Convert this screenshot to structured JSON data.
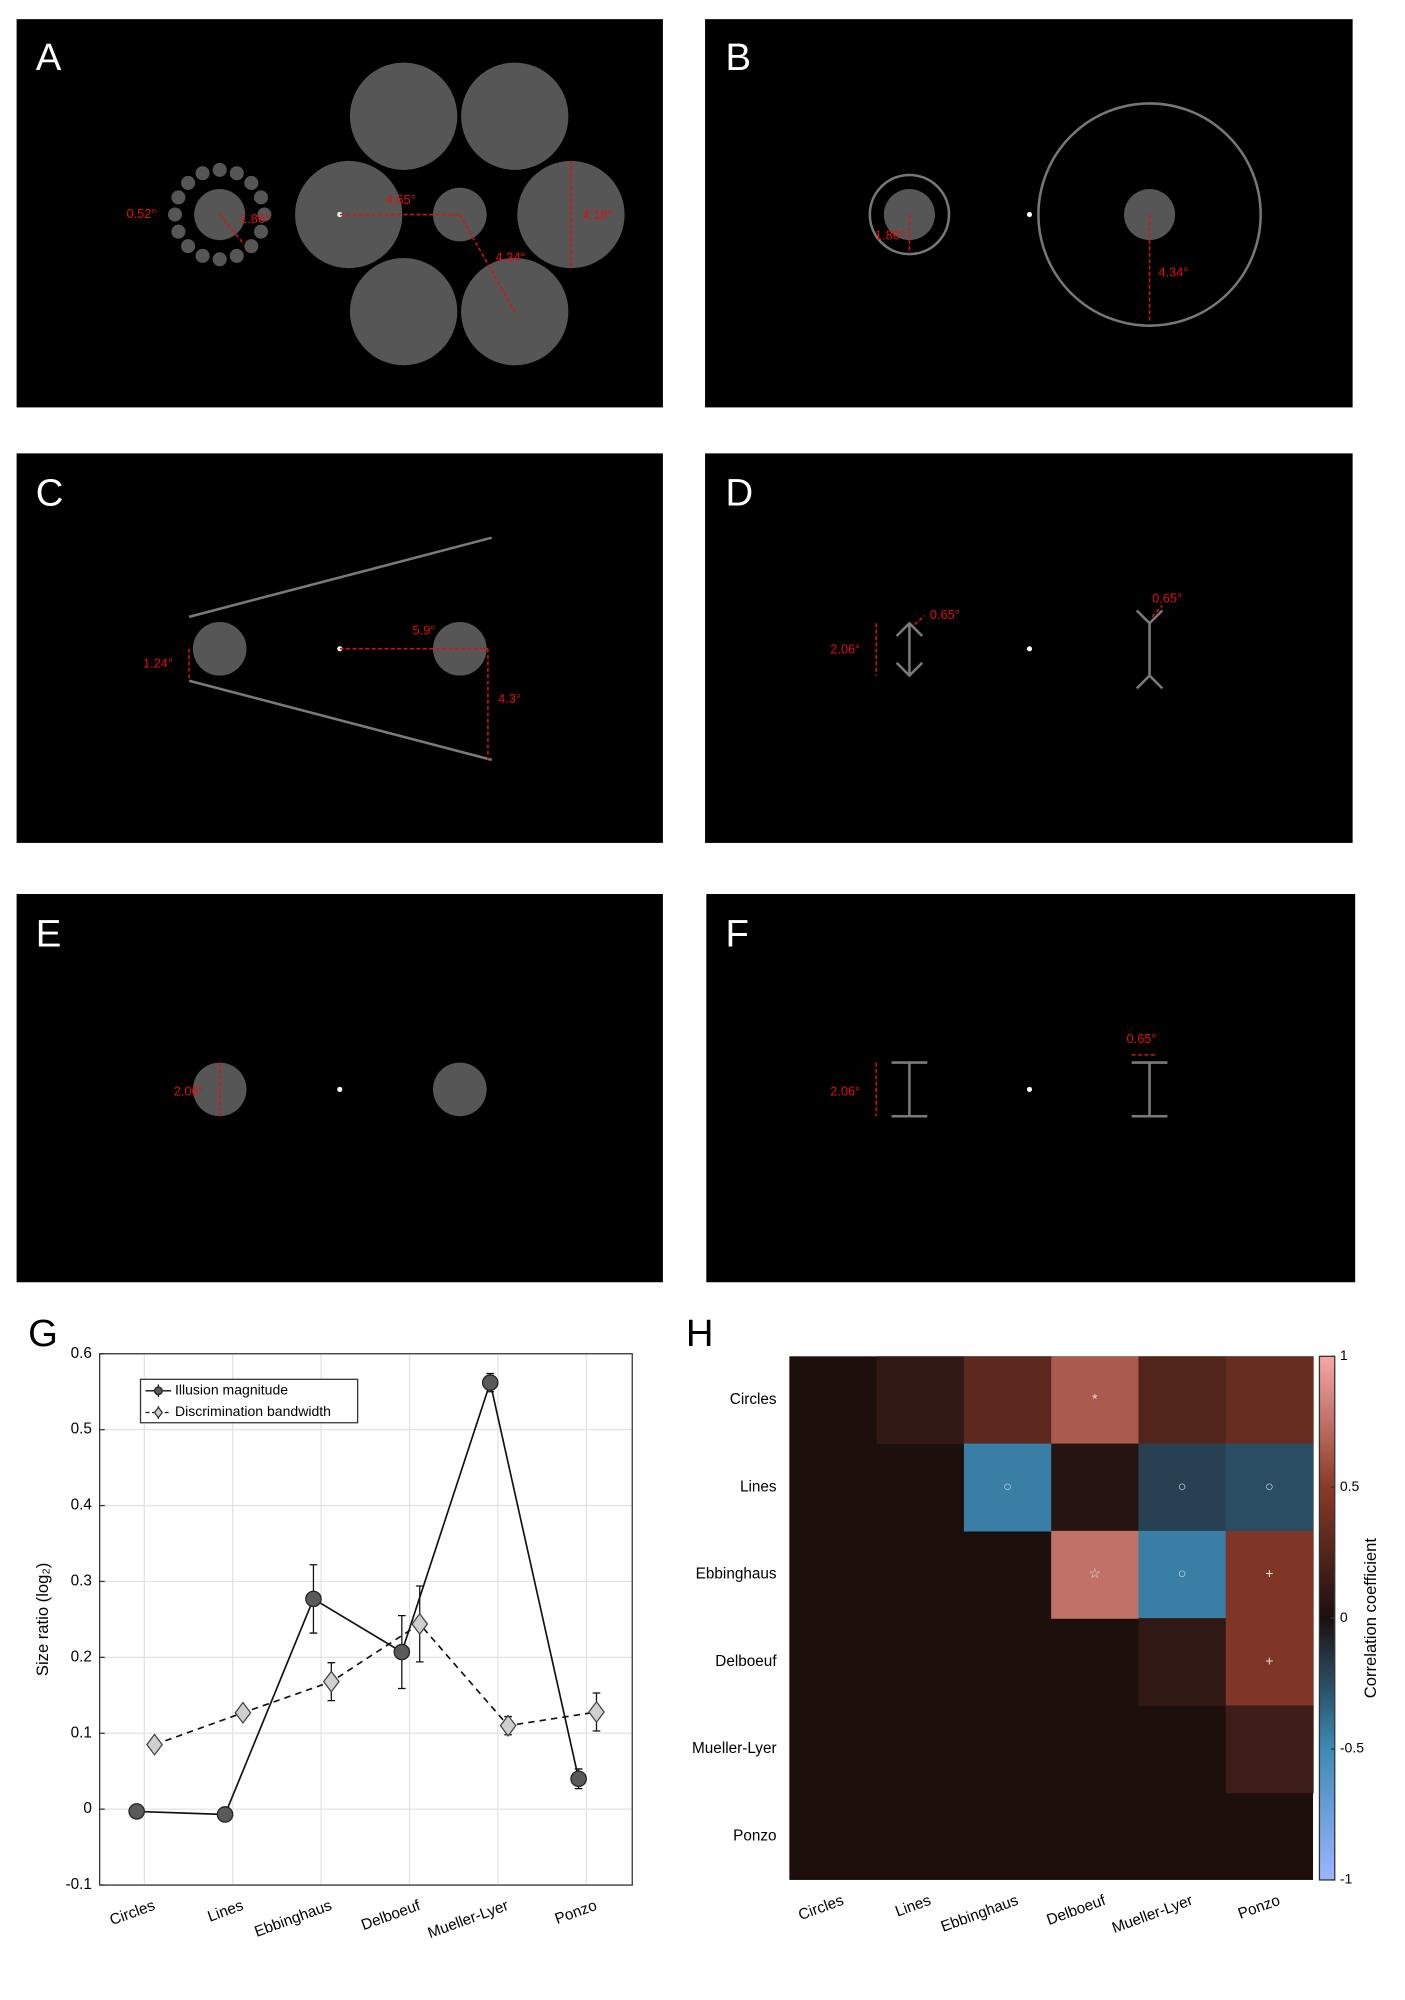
{
  "panels": [
    {
      "letter": "A",
      "labels": [
        "0.52°",
        "1.86°",
        "4.65°",
        "4.18°",
        "4.34°"
      ]
    },
    {
      "letter": "B",
      "labels": [
        "1.86°",
        "4.34°"
      ]
    },
    {
      "letter": "C",
      "labels": [
        "1.24°",
        "5.9°",
        "4.3°"
      ]
    },
    {
      "letter": "D",
      "labels": [
        "2.06°",
        "0.65°",
        "0.65°"
      ]
    },
    {
      "letter": "E",
      "labels": [
        "2.06°"
      ]
    },
    {
      "letter": "F",
      "labels": [
        "2.06°",
        "0.65°"
      ]
    }
  ],
  "chart_data": [
    {
      "type": "line",
      "letter": "G",
      "y_label": "Size ratio (log₂)",
      "categories": [
        "Circles",
        "Lines",
        "Ebbinghaus",
        "Delboeuf",
        "Mueller-Lyer",
        "Ponzo"
      ],
      "series": [
        {
          "name": "Illusion magnitude",
          "color": "#5a5a5a",
          "linestyle": "solid",
          "marker": "circle",
          "values": [
            -0.003,
            -0.007,
            0.277,
            0.207,
            0.562,
            0.04
          ],
          "errors": [
            0.004,
            0.004,
            0.045,
            0.048,
            0.012,
            0.013
          ]
        },
        {
          "name": "Discrimination bandwidth",
          "color": "#cfcfcf",
          "linestyle": "dashed",
          "marker": "diamond",
          "values": [
            0.085,
            0.127,
            0.168,
            0.244,
            0.11,
            0.128
          ],
          "errors": [
            0.005,
            0.005,
            0.025,
            0.05,
            0.012,
            0.025
          ]
        }
      ],
      "ylim": [
        -0.1,
        0.6
      ],
      "yticks": [
        -0.1,
        0,
        0.1,
        0.2,
        0.3,
        0.4,
        0.5,
        0.6
      ],
      "grid": true
    },
    {
      "type": "heatmap",
      "letter": "H",
      "colorbar_label": "Correlation coefficient",
      "rows": [
        "Circles",
        "Lines",
        "Ebbinghaus",
        "Delboeuf",
        "Mueller-Lyer",
        "Ponzo"
      ],
      "columns": [
        "Circles",
        "Lines",
        "Ebbinghaus",
        "Delboeuf",
        "Mueller-Lyer",
        "Ponzo"
      ],
      "values": [
        [
          null,
          0.1,
          0.3,
          0.65,
          0.25,
          0.35
        ],
        [
          null,
          null,
          -0.45,
          0.05,
          -0.2,
          -0.25
        ],
        [
          null,
          null,
          null,
          0.75,
          -0.45,
          0.45
        ],
        [
          null,
          null,
          null,
          null,
          0.1,
          0.45
        ],
        [
          null,
          null,
          null,
          null,
          null,
          0.15
        ],
        [
          null,
          null,
          null,
          null,
          null,
          null
        ]
      ],
      "markers": [
        [
          null,
          null,
          null,
          "*",
          null,
          null
        ],
        [
          null,
          null,
          "○",
          null,
          "○",
          "○"
        ],
        [
          null,
          null,
          null,
          "☆",
          "○",
          "+"
        ],
        [
          null,
          null,
          null,
          null,
          null,
          "+"
        ],
        [
          null,
          null,
          null,
          null,
          null,
          null
        ],
        [
          null,
          null,
          null,
          null,
          null,
          null
        ]
      ],
      "colormap": [
        "#9db4ff",
        "#3b8ab5",
        "#1a1010",
        "#8a3a28",
        "#f5a8a8"
      ],
      "missing_color": "#1d0f0b",
      "clim": [
        -1,
        1
      ],
      "cticks": [
        -1,
        -0.5,
        0,
        0.5,
        1
      ]
    }
  ]
}
